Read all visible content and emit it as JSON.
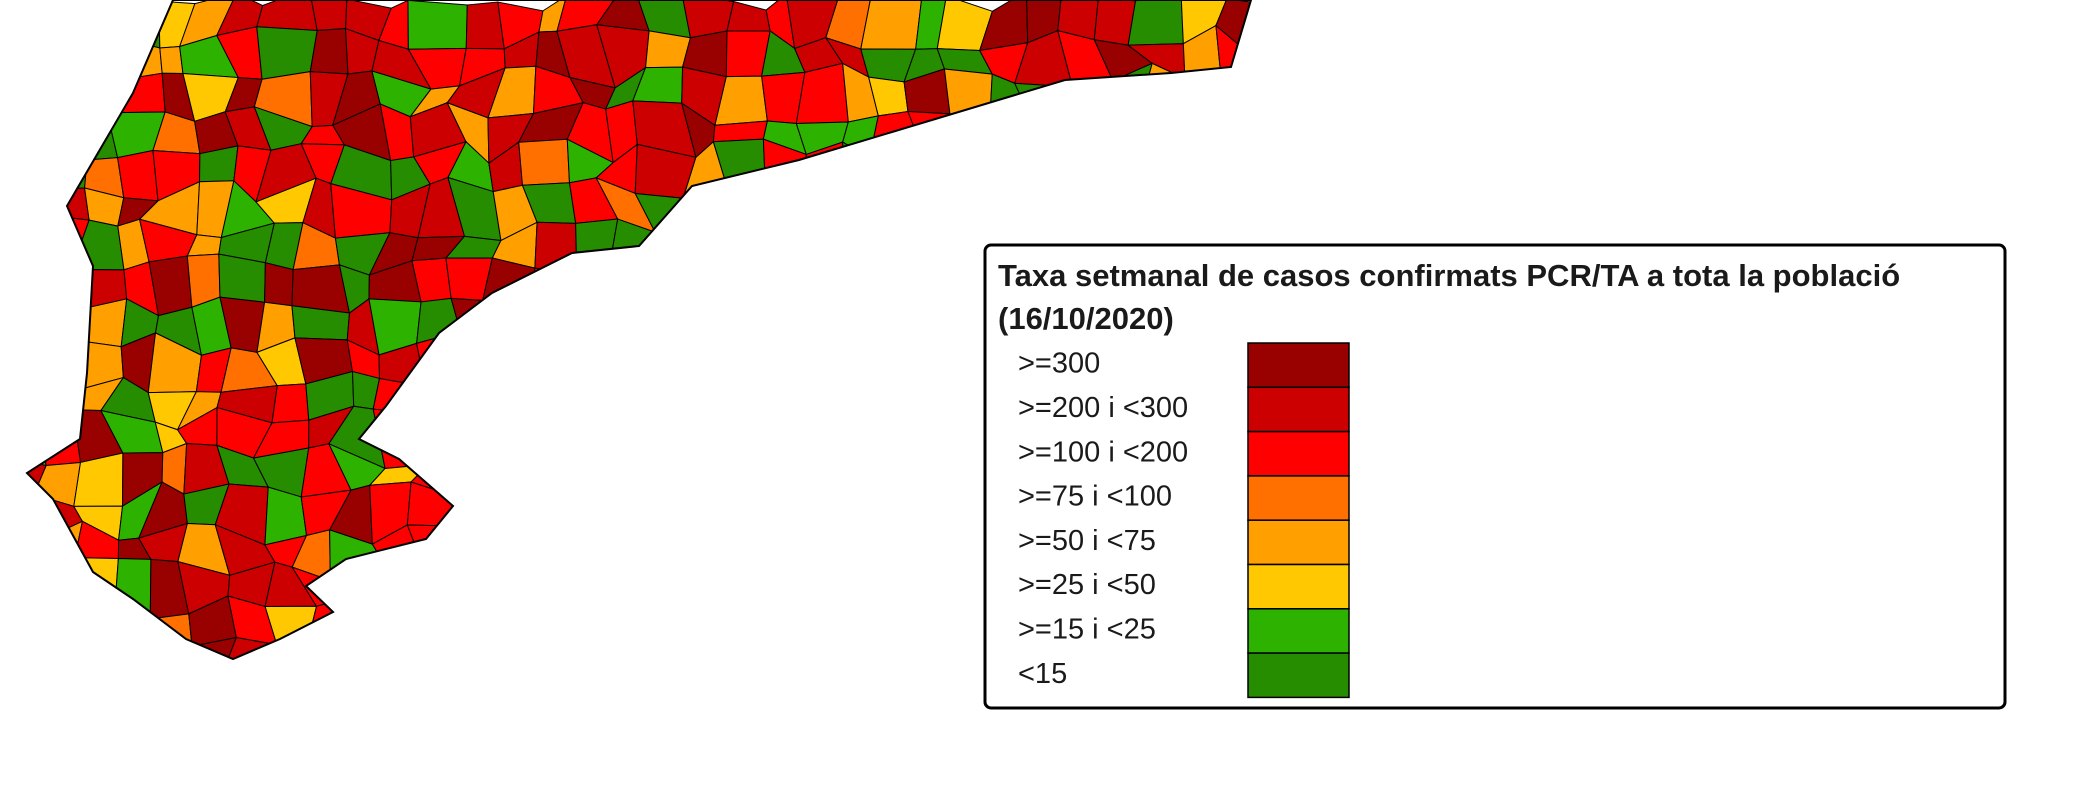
{
  "legend": {
    "title": "Taxa setmanal de casos confirmats PCR/TA a tota la població",
    "subtitle": "(16/10/2020)",
    "items": [
      {
        "label": ">=300",
        "color": "#990000"
      },
      {
        "label": ">=200 i <300",
        "color": "#cc0000"
      },
      {
        "label": ">=100 i <200",
        "color": "#ff0000"
      },
      {
        "label": ">=75 i <100",
        "color": "#ff7000"
      },
      {
        "label": ">=50 i <75",
        "color": "#ffa000"
      },
      {
        "label": ">=25 i <50",
        "color": "#ffc800"
      },
      {
        "label": ">=15 i <25",
        "color": "#2db200"
      },
      {
        "label": "<15",
        "color": "#268c00"
      }
    ]
  }
}
